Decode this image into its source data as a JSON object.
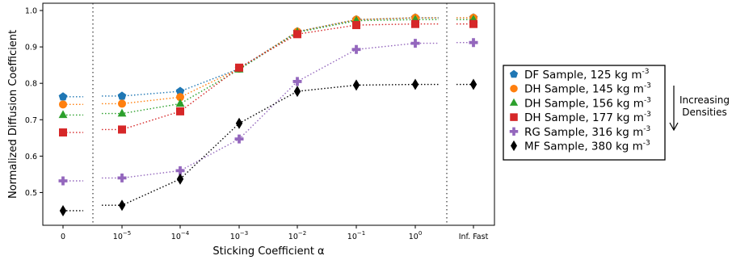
{
  "chart_data": {
    "type": "line",
    "xlabel": "Sticking Coefficient α",
    "ylabel": "Normalized Diffusion Coefficient",
    "x_categories": [
      "0",
      "10^-5",
      "10^-4",
      "10^-3",
      "10^-2",
      "10^-1",
      "10^0",
      "Inf. Fast"
    ],
    "x_tick_labels": [
      {
        "base": "0",
        "exp": ""
      },
      {
        "base": "10",
        "exp": "−5"
      },
      {
        "base": "10",
        "exp": "−4"
      },
      {
        "base": "10",
        "exp": "−3"
      },
      {
        "base": "10",
        "exp": "−2"
      },
      {
        "base": "10",
        "exp": "−1"
      },
      {
        "base": "10",
        "exp": "0"
      },
      {
        "base": "Inf. Fast",
        "exp": ""
      }
    ],
    "ylim": [
      0.41,
      1.02
    ],
    "y_ticks": [
      "0.5",
      "0.6",
      "0.7",
      "0.8",
      "0.9",
      "1.0"
    ],
    "series": [
      {
        "name": "DF Sample, 125 kg m",
        "unit_exp": "-3",
        "color": "#1f77b4",
        "marker": "pentagon",
        "values": [
          0.763,
          0.765,
          0.778,
          0.84,
          0.942,
          0.975,
          0.98,
          0.98
        ]
      },
      {
        "name": "DH Sample, 145 kg m",
        "unit_exp": "-3",
        "color": "#ff7f0e",
        "marker": "circle",
        "values": [
          0.742,
          0.744,
          0.762,
          0.84,
          0.942,
          0.975,
          0.98,
          0.98
        ]
      },
      {
        "name": "DH Sample, 156 kg m",
        "unit_exp": "-3",
        "color": "#2ca02c",
        "marker": "triangle",
        "values": [
          0.713,
          0.717,
          0.744,
          0.838,
          0.94,
          0.972,
          0.975,
          0.975
        ]
      },
      {
        "name": "DH Sample, 177 kg m",
        "unit_exp": "-3",
        "color": "#d62728",
        "marker": "square",
        "values": [
          0.665,
          0.673,
          0.723,
          0.843,
          0.935,
          0.96,
          0.963,
          0.963
        ]
      },
      {
        "name": "RG Sample, 316 kg m",
        "unit_exp": "-3",
        "color": "#9467bd",
        "marker": "plus",
        "values": [
          0.532,
          0.54,
          0.56,
          0.647,
          0.805,
          0.893,
          0.91,
          0.912
        ]
      },
      {
        "name": "MF Sample, 380 kg m",
        "unit_exp": "-3",
        "color": "#000000",
        "marker": "diamond",
        "values": [
          0.45,
          0.465,
          0.537,
          0.69,
          0.778,
          0.795,
          0.797,
          0.797
        ]
      }
    ],
    "annotation": [
      "Increasing",
      "Densities"
    ],
    "legend_position": "right outside",
    "grid": false
  }
}
